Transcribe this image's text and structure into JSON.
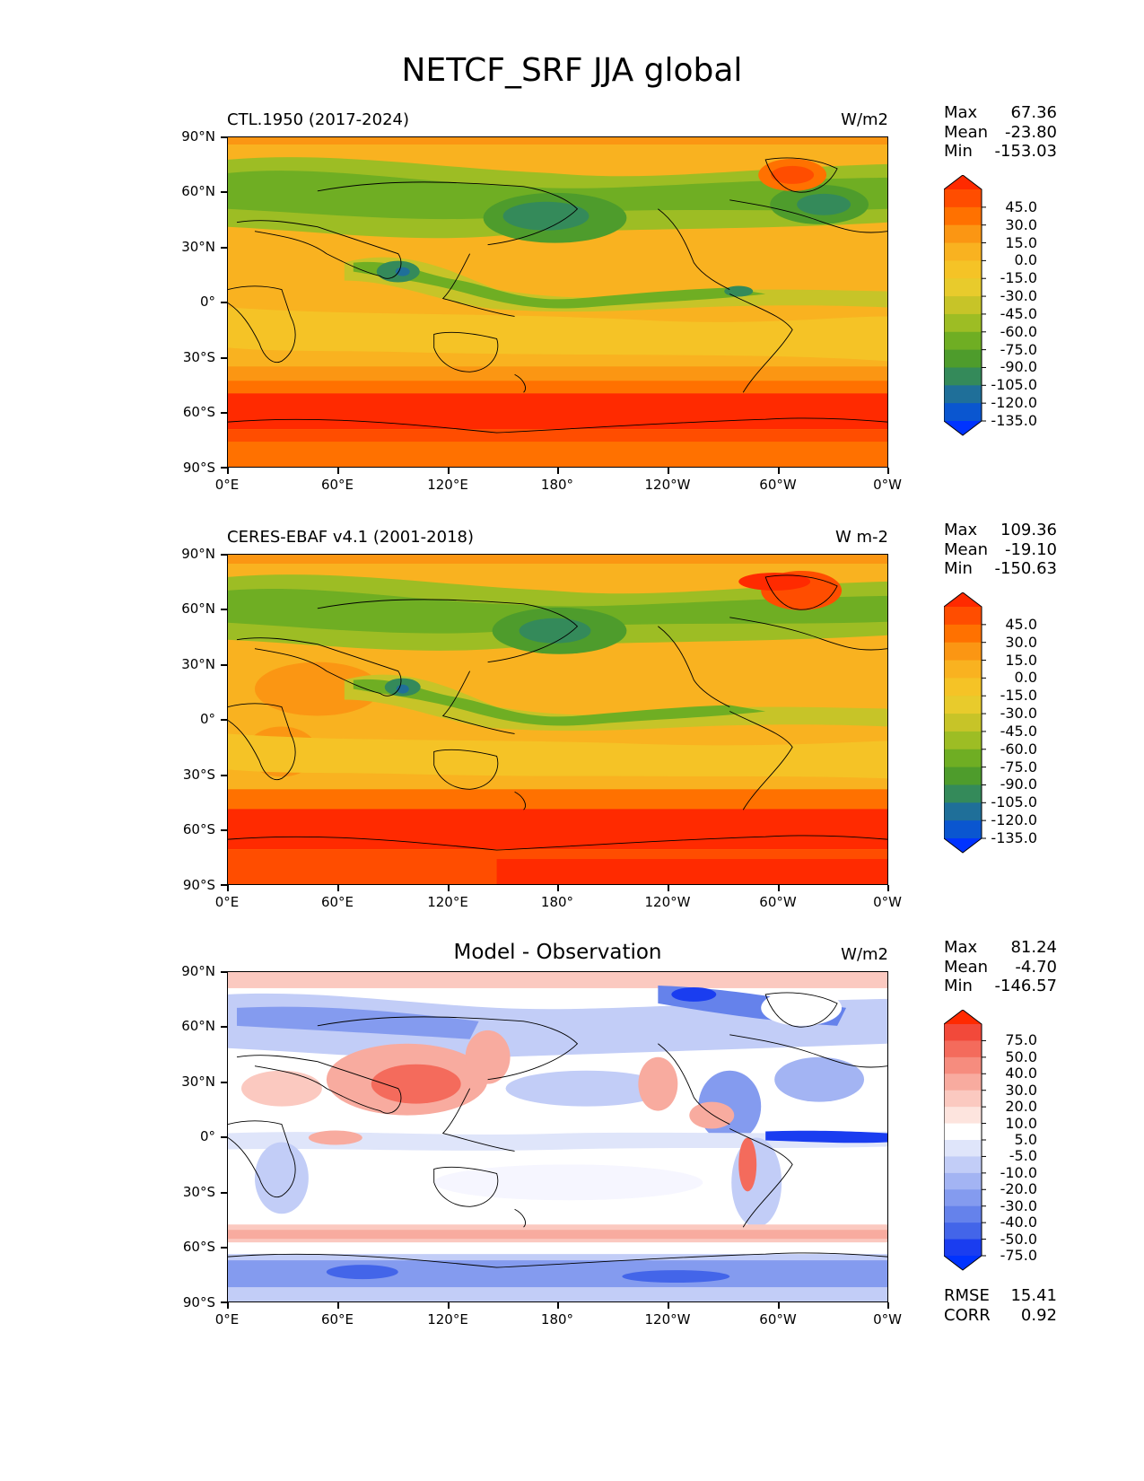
{
  "figure_title": "NETCF_SRF JJA global",
  "lat_labels": [
    "90°N",
    "60°N",
    "30°N",
    "0°",
    "30°S",
    "60°S",
    "90°S"
  ],
  "lon_labels": [
    "0°E",
    "60°E",
    "120°E",
    "180°",
    "120°W",
    "60°W",
    "0°W"
  ],
  "panels": [
    {
      "name": "model",
      "title": "CTL.1950 (2017-2024)",
      "units": "W/m2",
      "stats": {
        "max_label": "Max",
        "max": "67.36",
        "mean_label": "Mean",
        "mean": "-23.80",
        "min_label": "Min",
        "min": "-153.03"
      },
      "levels": [
        "45.0",
        "30.0",
        "15.0",
        "0.0",
        "-15.0",
        "-30.0",
        "-45.0",
        "-60.0",
        "-75.0",
        "-90.0",
        "-105.0",
        "-120.0",
        "-135.0"
      ],
      "colors": [
        "#ff2a00",
        "#ff4d00",
        "#ff7100",
        "#fb9613",
        "#f9b220",
        "#f5c326",
        "#e8cb2c",
        "#c7c428",
        "#9dbd24",
        "#6fae23",
        "#4e9c2c",
        "#348a5a",
        "#1f6f99",
        "#0a56d0",
        "#0033ff"
      ]
    },
    {
      "name": "observation",
      "title": "CERES-EBAF v4.1 (2001-2018)",
      "units": "W m-2",
      "stats": {
        "max_label": "Max",
        "max": "109.36",
        "mean_label": "Mean",
        "mean": "-19.10",
        "min_label": "Min",
        "min": "-150.63"
      },
      "levels": [
        "45.0",
        "30.0",
        "15.0",
        "0.0",
        "-15.0",
        "-30.0",
        "-45.0",
        "-60.0",
        "-75.0",
        "-90.0",
        "-105.0",
        "-120.0",
        "-135.0"
      ],
      "colors": [
        "#ff2a00",
        "#ff4d00",
        "#ff7100",
        "#fb9613",
        "#f9b220",
        "#f5c326",
        "#e8cb2c",
        "#c7c428",
        "#9dbd24",
        "#6fae23",
        "#4e9c2c",
        "#348a5a",
        "#1f6f99",
        "#0a56d0",
        "#0033ff"
      ]
    },
    {
      "name": "difference",
      "title": "Model - Observation",
      "units": "W/m2",
      "stats": {
        "max_label": "Max",
        "max": "81.24",
        "mean_label": "Mean",
        "mean": "-4.70",
        "min_label": "Min",
        "min": "-146.57"
      },
      "levels": [
        "75.0",
        "50.0",
        "40.0",
        "30.0",
        "20.0",
        "10.0",
        "5.0",
        "-5.0",
        "-10.0",
        "-20.0",
        "-30.0",
        "-40.0",
        "-50.0",
        "-75.0"
      ],
      "colors": [
        "#ff2a00",
        "#f2493a",
        "#f46b5c",
        "#f68c7e",
        "#f8ab9f",
        "#fbc9c0",
        "#fde4de",
        "#ffffff",
        "#dfe5fa",
        "#c2cdf7",
        "#a3b4f3",
        "#849bef",
        "#6582eb",
        "#4365e9",
        "#1a3df0",
        "#0033ff"
      ],
      "metrics": {
        "rmse_label": "RMSE",
        "rmse": "15.41",
        "corr_label": "CORR",
        "corr": "0.92"
      }
    }
  ]
}
